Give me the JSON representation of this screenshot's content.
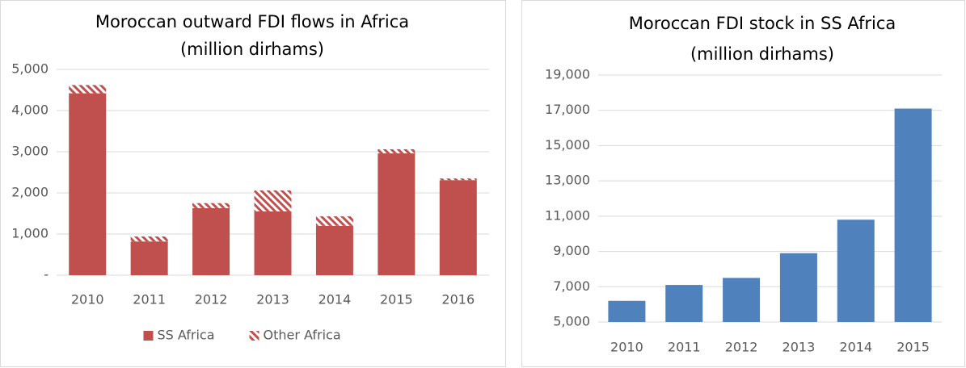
{
  "chart_data": [
    {
      "type": "stacked_bar",
      "title": [
        "Moroccan outward FDI flows in Africa",
        "(million dirhams)"
      ],
      "categories": [
        "2010",
        "2011",
        "2012",
        "2013",
        "2014",
        "2015",
        "2016"
      ],
      "series": [
        {
          "name": "SS Africa",
          "color": "#c0504d",
          "values": [
            4420,
            820,
            1630,
            1550,
            1200,
            2960,
            2310
          ]
        },
        {
          "name": "Other Africa",
          "color": "#c0504d",
          "hatch": true,
          "values": [
            200,
            120,
            120,
            510,
            230,
            100,
            40
          ]
        }
      ],
      "ylim": [
        0,
        5000
      ],
      "yticks": [
        {
          "value": 0,
          "label": "-"
        },
        {
          "value": 1000,
          "label": "1,000"
        },
        {
          "value": 2000,
          "label": "2,000"
        },
        {
          "value": 3000,
          "label": "3,000"
        },
        {
          "value": 4000,
          "label": "4,000"
        },
        {
          "value": 5000,
          "label": "5,000"
        }
      ],
      "grid": true,
      "legend": "bottom"
    },
    {
      "type": "bar",
      "title": [
        "Moroccan FDI stock in SS Africa",
        "(million dirhams)"
      ],
      "categories": [
        "2010",
        "2011",
        "2012",
        "2013",
        "2014",
        "2015"
      ],
      "values": [
        6200,
        7100,
        7500,
        8900,
        10800,
        17100
      ],
      "color": "#4f81bd",
      "ylim": [
        5000,
        19000
      ],
      "yticks": [
        {
          "value": 5000,
          "label": "5,000"
        },
        {
          "value": 7000,
          "label": "7,000"
        },
        {
          "value": 9000,
          "label": "9,000"
        },
        {
          "value": 11000,
          "label": "11,000"
        },
        {
          "value": 13000,
          "label": "13,000"
        },
        {
          "value": 15000,
          "label": "15,000"
        },
        {
          "value": 17000,
          "label": "17,000"
        },
        {
          "value": 19000,
          "label": "19,000"
        }
      ],
      "grid": true
    }
  ]
}
